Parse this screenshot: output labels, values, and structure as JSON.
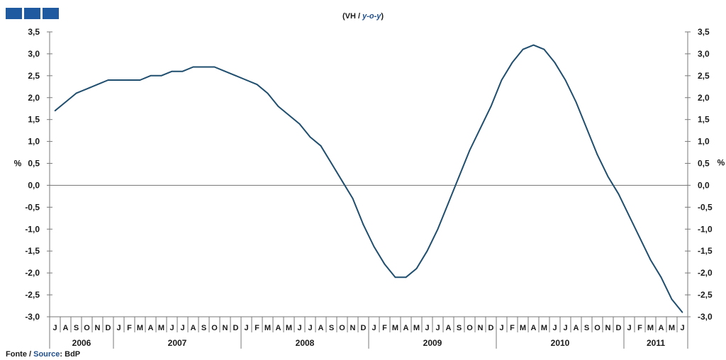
{
  "header": {
    "logo_color": "#1f5aa0",
    "title_main": "(VH / ",
    "title_alt": "y-o-y",
    "title_end": ")"
  },
  "footer": {
    "source_main": "Fonte / ",
    "source_alt": "Source",
    "source_end": ": BdP"
  },
  "chart_data": {
    "type": "line",
    "title": "(VH / y-o-y)",
    "ylabel_left": "%",
    "ylabel_right": "%",
    "ylim": [
      -3.0,
      3.5
    ],
    "yticks": [
      "3,5",
      "3,0",
      "2,5",
      "2,0",
      "1,5",
      "1,0",
      "0,5",
      "0,0",
      "-0,5",
      "-1,0",
      "-1,5",
      "-2,0",
      "-2,5",
      "-3,0"
    ],
    "ytick_values": [
      3.5,
      3.0,
      2.5,
      2.0,
      1.5,
      1.0,
      0.5,
      0.0,
      -0.5,
      -1.0,
      -1.5,
      -2.0,
      -2.5,
      -3.0
    ],
    "month_labels": [
      "J",
      "A",
      "S",
      "O",
      "N",
      "D",
      "J",
      "F",
      "M",
      "A",
      "M",
      "J",
      "J",
      "A",
      "S",
      "O",
      "N",
      "D",
      "J",
      "F",
      "M",
      "A",
      "M",
      "J",
      "J",
      "A",
      "S",
      "O",
      "N",
      "D",
      "J",
      "F",
      "M",
      "A",
      "M",
      "J",
      "J",
      "A",
      "S",
      "O",
      "N",
      "D",
      "J",
      "F",
      "M",
      "A",
      "M",
      "J",
      "J",
      "A",
      "S",
      "O",
      "N",
      "D",
      "J",
      "F",
      "M",
      "A",
      "M",
      "J"
    ],
    "years": [
      {
        "label": "2006",
        "months": 6
      },
      {
        "label": "2007",
        "months": 12
      },
      {
        "label": "2008",
        "months": 12
      },
      {
        "label": "2009",
        "months": 12
      },
      {
        "label": "2010",
        "months": 12
      },
      {
        "label": "2011",
        "months": 6
      }
    ],
    "series": [
      {
        "color": "#1f4e6e",
        "values": [
          1.7,
          1.9,
          2.1,
          2.2,
          2.3,
          2.4,
          2.4,
          2.4,
          2.4,
          2.5,
          2.5,
          2.6,
          2.6,
          2.7,
          2.7,
          2.7,
          2.6,
          2.5,
          2.4,
          2.3,
          2.1,
          1.8,
          1.6,
          1.4,
          1.1,
          0.9,
          0.5,
          0.1,
          -0.3,
          -0.9,
          -1.4,
          -1.8,
          -2.1,
          -2.1,
          -1.9,
          -1.5,
          -1.0,
          -0.4,
          0.2,
          0.8,
          1.3,
          1.8,
          2.4,
          2.8,
          3.1,
          3.2,
          3.1,
          2.8,
          2.4,
          1.9,
          1.3,
          0.7,
          0.2,
          -0.2,
          -0.7,
          -1.2,
          -1.7,
          -2.1,
          -2.6,
          -2.9
        ]
      }
    ],
    "grid": false,
    "legend": "none"
  }
}
